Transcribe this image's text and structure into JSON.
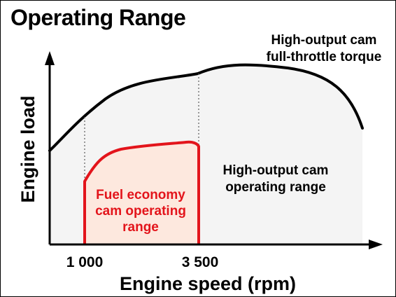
{
  "title": "Operating Range",
  "labels": {
    "y_axis": "Engine load",
    "x_axis": "Engine speed (rpm)",
    "curve_label_line1": "High-output cam",
    "curve_label_line2": "full-throttle torque",
    "high_region_line1": "High-output cam",
    "high_region_line2": "operating range",
    "fuel_region_line1": "Fuel economy",
    "fuel_region_line2": "cam operating",
    "fuel_region_line3": "range",
    "tick_1000": "1 000",
    "tick_3500": "3 500"
  },
  "colors": {
    "outline": "#000000",
    "high_region_fill": "#f4f4f4",
    "fuel_region_stroke": "#e3141b",
    "fuel_region_fill": "#fde8de",
    "fuel_text": "#e3141b"
  }
}
